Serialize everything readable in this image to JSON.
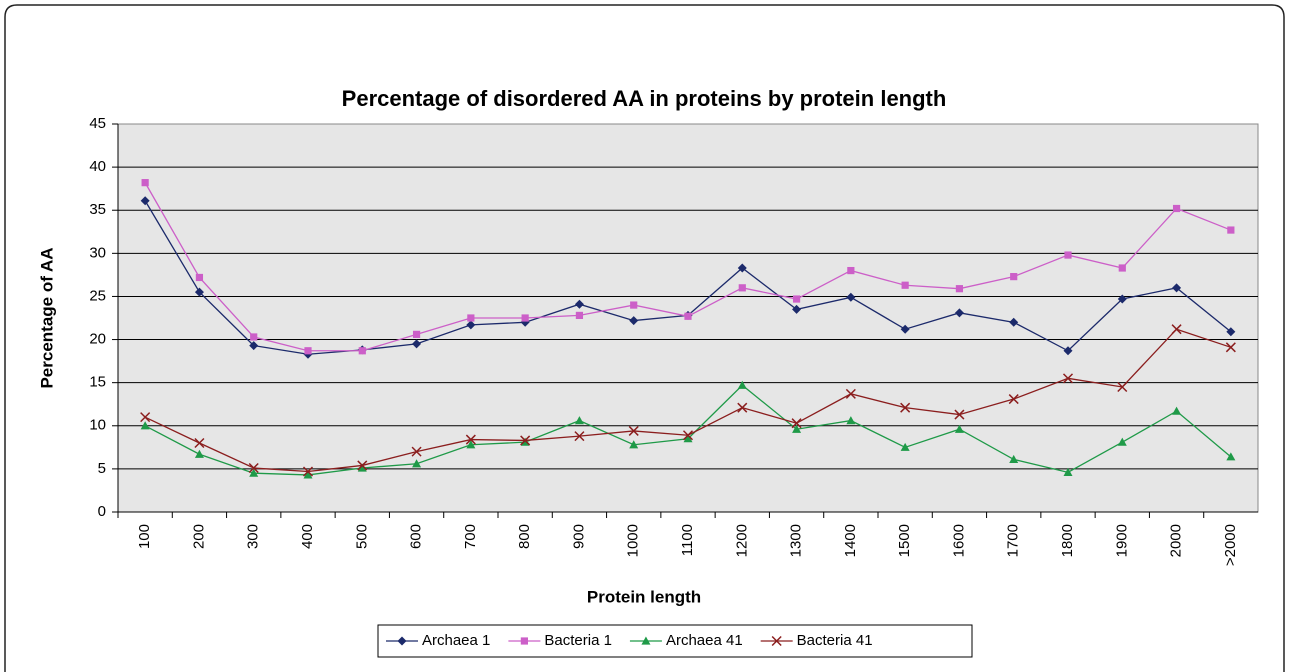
{
  "chart_data": {
    "type": "line",
    "title": "Percentage of disordered AA in proteins by protein length",
    "x_label": "Protein length",
    "y_label": "Percentage of AA",
    "categories": [
      "100",
      "200",
      "300",
      "400",
      "500",
      "600",
      "700",
      "800",
      "900",
      "1000",
      "1100",
      "1200",
      "1300",
      "1400",
      "1500",
      "1600",
      "1700",
      "1800",
      "1900",
      "2000",
      ">2000"
    ],
    "series": [
      {
        "name": "Archaea 1",
        "color": "#1c2a6b",
        "marker": "diamond",
        "values": [
          36.1,
          25.5,
          19.3,
          18.3,
          18.8,
          19.5,
          21.7,
          22.0,
          24.1,
          22.2,
          22.8,
          28.3,
          23.5,
          24.9,
          21.2,
          23.1,
          22.0,
          18.7,
          24.7,
          26.0,
          20.9
        ]
      },
      {
        "name": "Bacteria 1",
        "color": "#cc5fc8",
        "marker": "square",
        "values": [
          38.2,
          27.2,
          20.3,
          18.7,
          18.7,
          20.6,
          22.5,
          22.5,
          22.8,
          24.0,
          22.7,
          26.0,
          24.7,
          28.0,
          26.3,
          25.9,
          27.3,
          29.8,
          28.3,
          35.2,
          32.7
        ]
      },
      {
        "name": "Archaea 41",
        "color": "#1f9a48",
        "marker": "triangle",
        "values": [
          10.0,
          6.7,
          4.5,
          4.3,
          5.1,
          5.6,
          7.8,
          8.1,
          10.6,
          7.8,
          8.5,
          14.7,
          9.6,
          10.6,
          7.5,
          9.6,
          6.1,
          4.6,
          8.1,
          11.7,
          6.4
        ]
      },
      {
        "name": "Bacteria 41",
        "color": "#8b1e1e",
        "marker": "x",
        "values": [
          11.0,
          8.0,
          5.1,
          4.7,
          5.4,
          7.0,
          8.4,
          8.3,
          8.8,
          9.4,
          8.9,
          12.1,
          10.3,
          13.7,
          12.1,
          11.3,
          13.1,
          15.5,
          14.5,
          21.2,
          19.1
        ]
      }
    ],
    "ylim": [
      0,
      45
    ],
    "yticks": [
      0,
      5,
      10,
      15,
      20,
      25,
      30,
      35,
      40,
      45
    ],
    "grid": true,
    "legend": "bottom"
  }
}
